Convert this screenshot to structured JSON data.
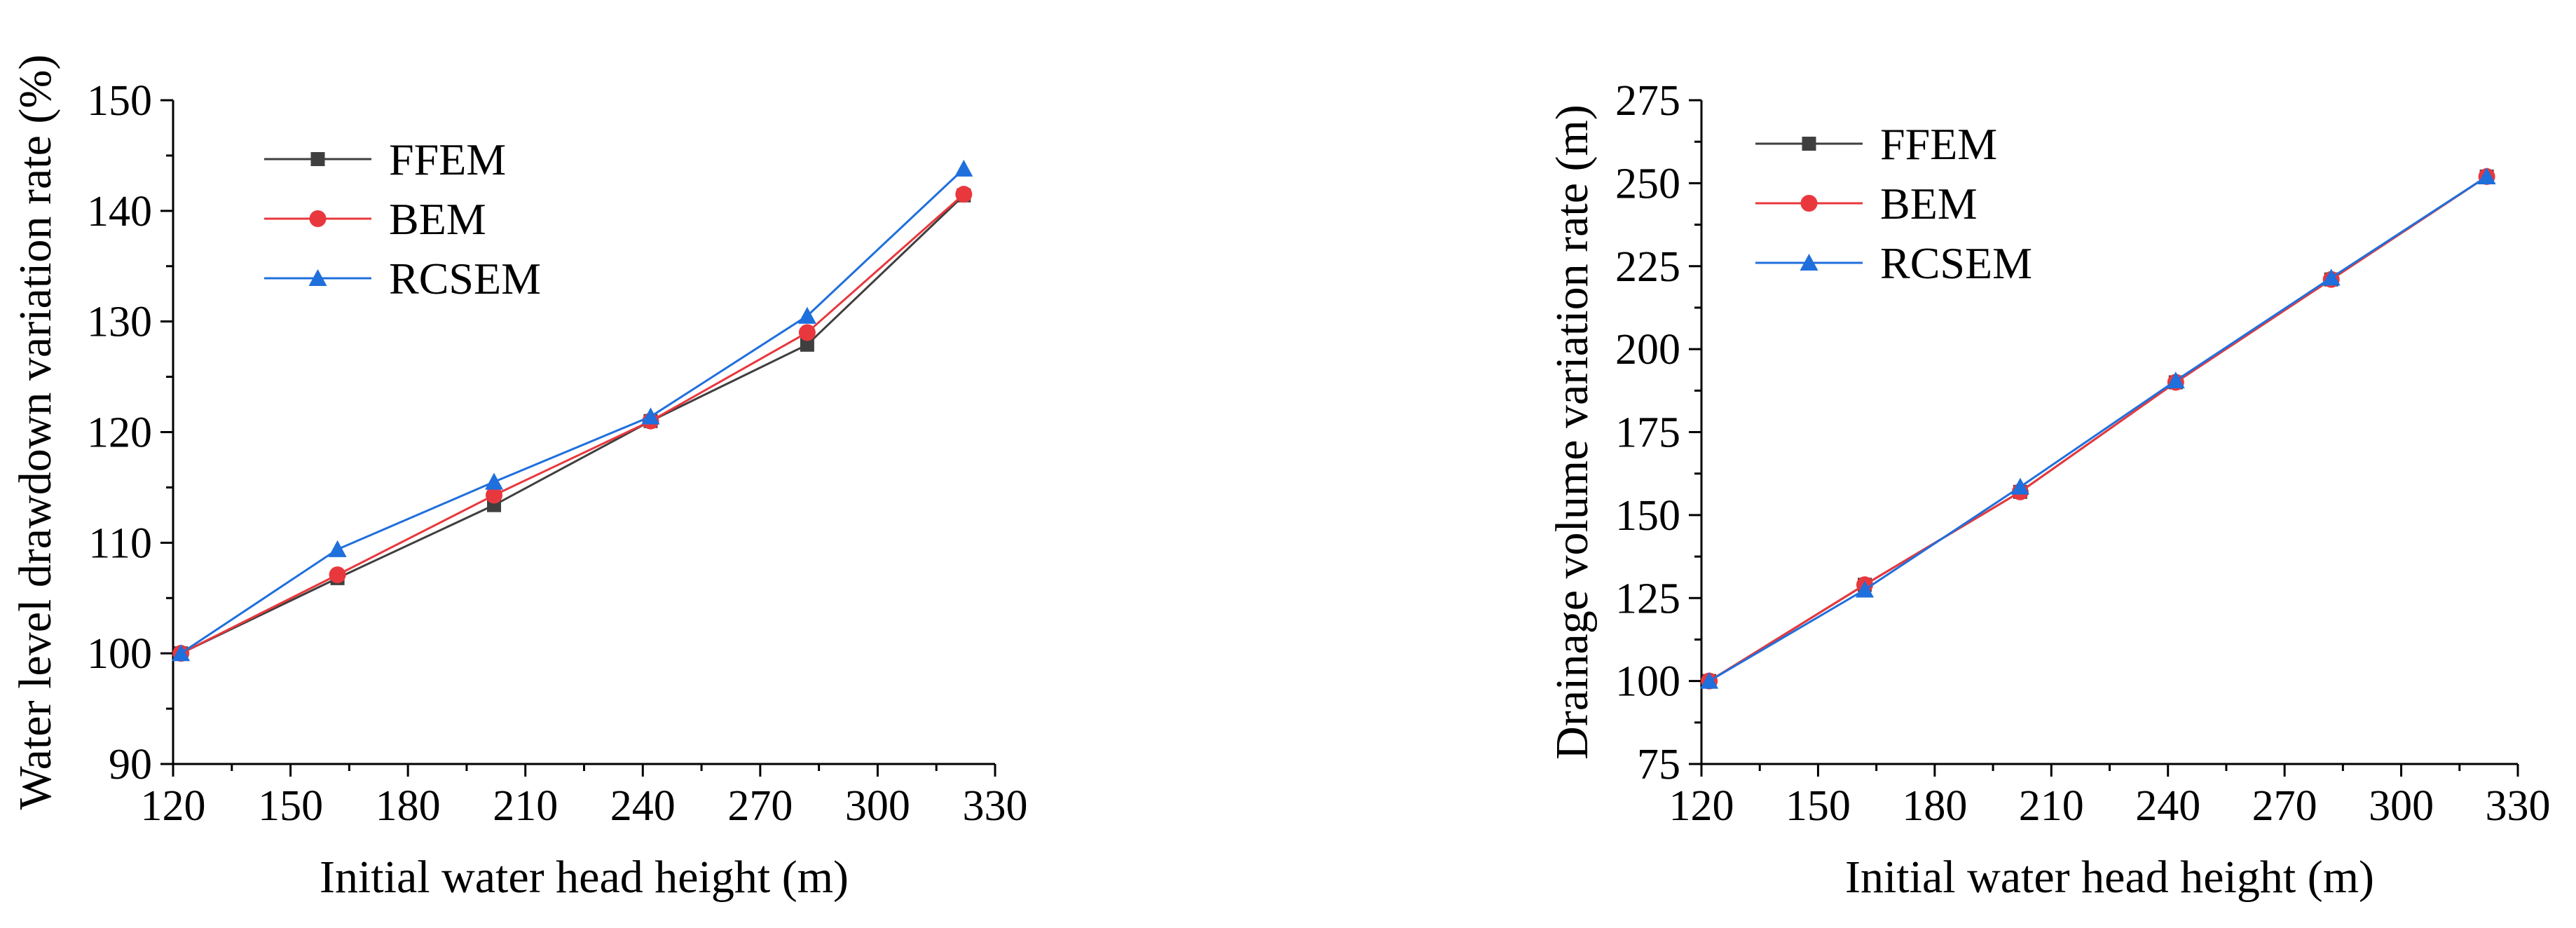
{
  "colors": {
    "FFEM": "#3f3f3f",
    "BEM": "#e8383d",
    "RCSEM": "#1f6fdc",
    "axis": "#000000"
  },
  "chart_data": [
    {
      "type": "line",
      "title": "",
      "xlabel": "Initial water head height (m)",
      "ylabel": "Water level drawdown variation rate (%)",
      "xlim": [
        120,
        330
      ],
      "ylim": [
        90,
        150
      ],
      "xticks": [
        120,
        150,
        180,
        210,
        240,
        270,
        300,
        330
      ],
      "yticks": [
        90,
        100,
        110,
        120,
        130,
        140,
        150
      ],
      "grid": false,
      "legend": "top-left",
      "x": [
        122,
        162,
        202,
        242,
        282,
        322
      ],
      "series": [
        {
          "name": "FFEM",
          "marker": "square",
          "values": [
            100,
            106.8,
            113.4,
            121,
            127.9,
            141.4
          ]
        },
        {
          "name": "BEM",
          "marker": "circle",
          "values": [
            100,
            107.1,
            114.3,
            121,
            129,
            141.5
          ]
        },
        {
          "name": "RCSEM",
          "marker": "triangle",
          "values": [
            100,
            109.4,
            115.5,
            121.4,
            130.5,
            143.8
          ]
        }
      ]
    },
    {
      "type": "line",
      "title": "",
      "xlabel": "Initial water head height (m)",
      "ylabel": "Drainage volume variation rate (m)",
      "xlim": [
        120,
        330
      ],
      "ylim": [
        75,
        275
      ],
      "xticks": [
        120,
        150,
        180,
        210,
        240,
        270,
        300,
        330
      ],
      "yticks": [
        75,
        100,
        125,
        150,
        175,
        200,
        225,
        250,
        275
      ],
      "grid": false,
      "legend": "top-left",
      "x": [
        122,
        162,
        202,
        242,
        282,
        322
      ],
      "series": [
        {
          "name": "FFEM",
          "marker": "square",
          "values": [
            100,
            129,
            157,
            190,
            221,
            252
          ]
        },
        {
          "name": "BEM",
          "marker": "circle",
          "values": [
            100,
            129,
            157,
            190,
            221,
            252
          ]
        },
        {
          "name": "RCSEM",
          "marker": "triangle",
          "values": [
            100,
            127.5,
            158.5,
            190.5,
            221.5,
            252
          ]
        }
      ]
    }
  ]
}
